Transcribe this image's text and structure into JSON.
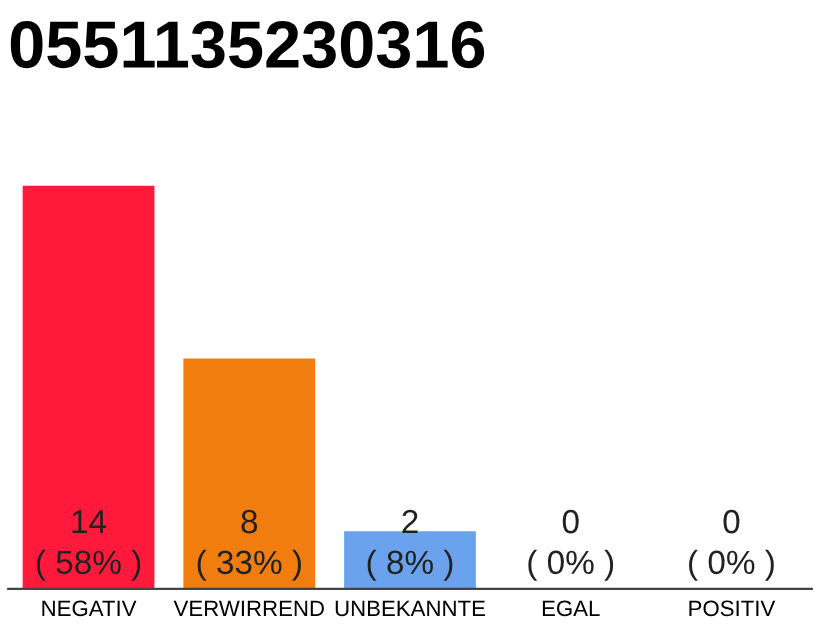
{
  "chart_data": {
    "type": "bar",
    "title": "0551135230316",
    "categories": [
      "NEGATIV",
      "VERWIRREND",
      "UNBEKANNTE",
      "EGAL",
      "POSITIV"
    ],
    "values": [
      14,
      8,
      2,
      0,
      0
    ],
    "colors": [
      "#ff1a3c",
      "#f07d0d",
      "#6aa2ee",
      "#6aa2ee",
      "#6aa2ee"
    ],
    "value_labels": [
      "14\n( 58% )",
      "8\n( 33% )",
      "2\n( 8% )",
      "0\n( 0% )",
      "0\n( 0% )"
    ],
    "tick_labels": "x"
  }
}
